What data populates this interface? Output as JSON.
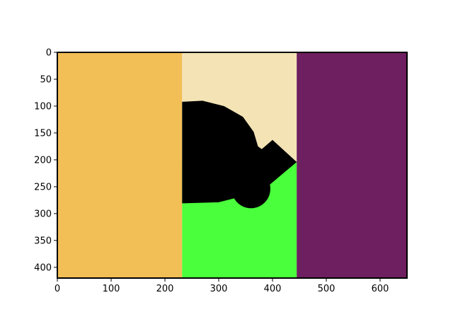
{
  "chart_data": {
    "type": "image",
    "title": "",
    "xlabel": "",
    "ylabel": "",
    "xlim": [
      0,
      650
    ],
    "ylim": [
      420,
      0
    ],
    "y_inverted": true,
    "grid": false,
    "legend": "none",
    "xticks": [
      0,
      100,
      200,
      300,
      400,
      500,
      600
    ],
    "yticks": [
      0,
      50,
      100,
      150,
      200,
      250,
      300,
      350,
      400
    ],
    "regions": [
      {
        "shape": "rect",
        "x": [
          0,
          232
        ],
        "y": [
          0,
          420
        ],
        "color": "#f2be56"
      },
      {
        "shape": "rect",
        "x": [
          232,
          445
        ],
        "y": [
          0,
          420
        ],
        "color": "#f3e3b5"
      },
      {
        "shape": "rect",
        "x": [
          232,
          445
        ],
        "y": [
          204,
          420
        ],
        "color": "#4aff3b"
      },
      {
        "shape": "rect",
        "x": [
          445,
          650
        ],
        "y": [
          0,
          420
        ],
        "color": "#6e1f5f"
      }
    ],
    "silhouette": {
      "color": "#000000",
      "body": [
        [
          232,
          92
        ],
        [
          270,
          90
        ],
        [
          310,
          100
        ],
        [
          345,
          120
        ],
        [
          365,
          148
        ],
        [
          373,
          175
        ],
        [
          380,
          180
        ],
        [
          400,
          163
        ],
        [
          445,
          204
        ],
        [
          420,
          225
        ],
        [
          400,
          242
        ],
        [
          387,
          253
        ],
        [
          385,
          266
        ],
        [
          375,
          280
        ],
        [
          360,
          285
        ],
        [
          344,
          281
        ],
        [
          335,
          270
        ],
        [
          300,
          279
        ],
        [
          232,
          281
        ]
      ],
      "circle": {
        "cx": 360,
        "cy": 254,
        "r": 36
      }
    }
  }
}
